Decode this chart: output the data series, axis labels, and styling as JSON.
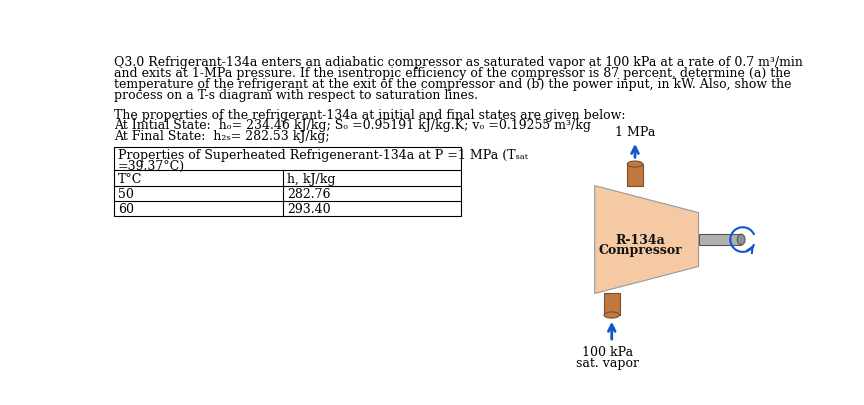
{
  "title_line1": "Q3.0 Refrigerant-134a enters an adiabatic compressor as saturated vapor at 100 kPa at a rate of 0.7 m³/min",
  "title_line2": "and exits at 1-MPa pressure. If the isentropic efficiency of the compressor is 87 percent, determine (a) the",
  "title_line3": "temperature of the refrigerant at the exit of the compressor and (b) the power input, in kW. Also, show the",
  "title_line4": "process on a T-s diagram with respect to saturation lines.",
  "props_line1": "The properties of the refrigerant-134a at initial and final states are given below:",
  "props_line2": "At Initial State:  hₒ= 234.46 kJ/kg; Sₒ =0.95191 kJ/kg.K; vₒ =0.19255 m³/kg",
  "props_line3": "At Final State:  h₂ₛ= 282.53 kJ/kg;",
  "table_header": "Properties of Superheated Refrigenerant-134a at P =1 MPa (Tₛₐₜ",
  "table_header2": "=39.37°C)",
  "table_col1": "T°C",
  "table_col2": "h, kJ/kg",
  "table_row1_c1": "50",
  "table_row1_c2": "282.76",
  "table_row2_c1": "60",
  "table_row2_c2": "293.40",
  "bg_color": "#ffffff",
  "text_color": "#000000",
  "compressor_fill": "#f5c9a3",
  "pipe_fill": "#c07840",
  "shaft_fill": "#b0b0b0",
  "arrow_color": "#1055cc",
  "label_1MPa": "1 MPa",
  "label_100kPa": "100 kPa",
  "label_sat_vapor": "sat. vapor",
  "label_compressor_line1": "R-134a",
  "label_compressor_line2": "Compressor",
  "font_size_main": 9.0,
  "font_size_table": 9.0,
  "font_size_diagram": 9.0
}
